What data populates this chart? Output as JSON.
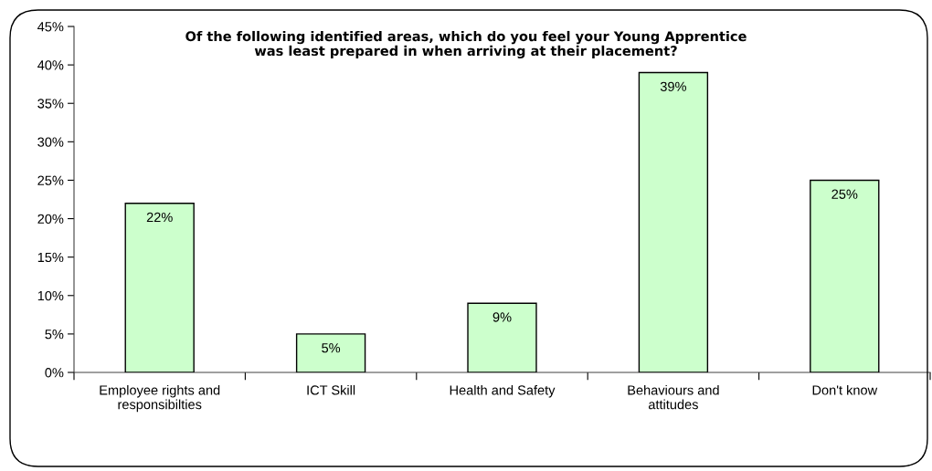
{
  "chart_data": {
    "type": "bar",
    "title": "Of the following identified areas, which do you feel your Young Apprentice\nwas least prepared in when arriving at their placement?",
    "categories": [
      "Employee rights and\nresponsibilties",
      "ICT Skill",
      "Health and Safety",
      "Behaviours and\nattitudes",
      "Don't know"
    ],
    "values": [
      22,
      5,
      9,
      39,
      25
    ],
    "value_labels": [
      "22%",
      "5%",
      "9%",
      "39%",
      "25%"
    ],
    "color": "#ccffcc",
    "ylim": [
      0,
      45
    ],
    "yticks": [
      {
        "value": 0,
        "label": "0%"
      },
      {
        "value": 5,
        "label": "5%"
      },
      {
        "value": 10,
        "label": "10%"
      },
      {
        "value": 15,
        "label": "15%"
      },
      {
        "value": 20,
        "label": "20%"
      },
      {
        "value": 25,
        "label": "25%"
      },
      {
        "value": 30,
        "label": "30%"
      },
      {
        "value": 35,
        "label": "35%"
      },
      {
        "value": 40,
        "label": "40%"
      },
      {
        "value": 45,
        "label": "45%"
      }
    ],
    "grid": false,
    "legend": false
  }
}
